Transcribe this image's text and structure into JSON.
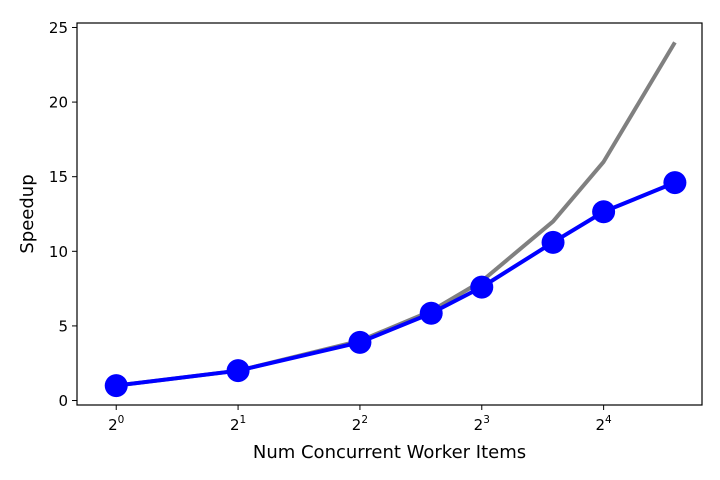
{
  "chart_data": {
    "type": "line",
    "title": "",
    "xlabel": "Num Concurrent Worker Items",
    "ylabel": "Speedup",
    "x_scale": "log2",
    "xlim": [
      0.8,
      28
    ],
    "ylim": [
      -0.3,
      25.3
    ],
    "x_ticks": [
      {
        "value": 1,
        "base": "2",
        "exp": "0"
      },
      {
        "value": 2,
        "base": "2",
        "exp": "1"
      },
      {
        "value": 4,
        "base": "2",
        "exp": "2"
      },
      {
        "value": 8,
        "base": "2",
        "exp": "3"
      },
      {
        "value": 16,
        "base": "2",
        "exp": "4"
      }
    ],
    "y_ticks": [
      0,
      5,
      10,
      15,
      20,
      25
    ],
    "grid": false,
    "series": [
      {
        "color": "#808080",
        "x": [
          1,
          2,
          4,
          6,
          8,
          12,
          16,
          24
        ],
        "y": [
          1,
          2,
          4,
          6,
          8,
          12,
          16,
          24
        ],
        "markers": false
      },
      {
        "color": "#0000ff",
        "x": [
          1,
          2,
          4,
          6,
          8,
          12,
          16,
          24
        ],
        "y": [
          1.0,
          2.0,
          3.9,
          5.85,
          7.6,
          10.6,
          12.65,
          14.6
        ],
        "markers": true
      }
    ]
  }
}
